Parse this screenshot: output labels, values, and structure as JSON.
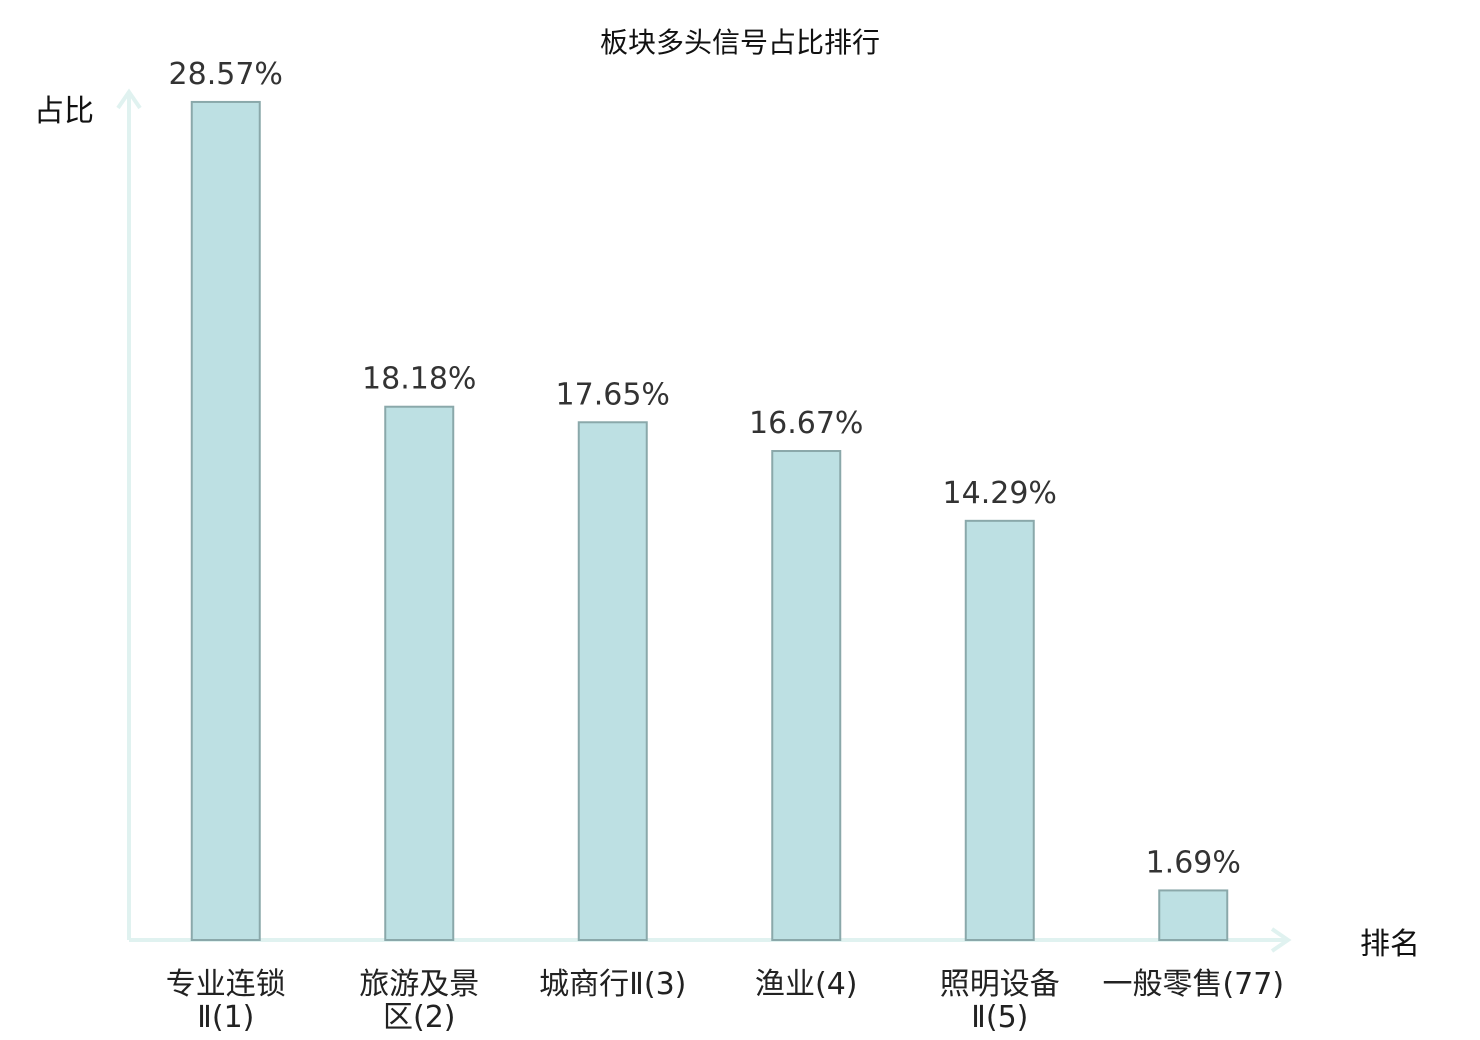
{
  "chart_data": {
    "type": "bar",
    "title": "板块多头信号占比排行",
    "xlabel": "排名",
    "ylabel": "占比",
    "ylim": [
      0,
      30
    ],
    "grid": false,
    "categories": [
      [
        "专业连锁",
        "Ⅱ(1)"
      ],
      [
        "旅游及景",
        "区(2)"
      ],
      [
        "城商行Ⅱ(3)"
      ],
      [
        "渔业(4)"
      ],
      [
        "照明设备",
        "Ⅱ(5)"
      ],
      [
        "一般零售(77)"
      ]
    ],
    "values": [
      28.57,
      18.18,
      17.65,
      16.67,
      14.29,
      1.69
    ],
    "value_labels": [
      "28.57%",
      "18.18%",
      "17.65%",
      "16.67%",
      "14.29%",
      "1.69%"
    ],
    "highlight_index": 5
  },
  "colors": {
    "bar_fill": "#bde0e3",
    "bar_stroke": "#8aa8aa",
    "axis": "#e0f2f0",
    "highlight": "#dd2222",
    "text": "#333333"
  }
}
